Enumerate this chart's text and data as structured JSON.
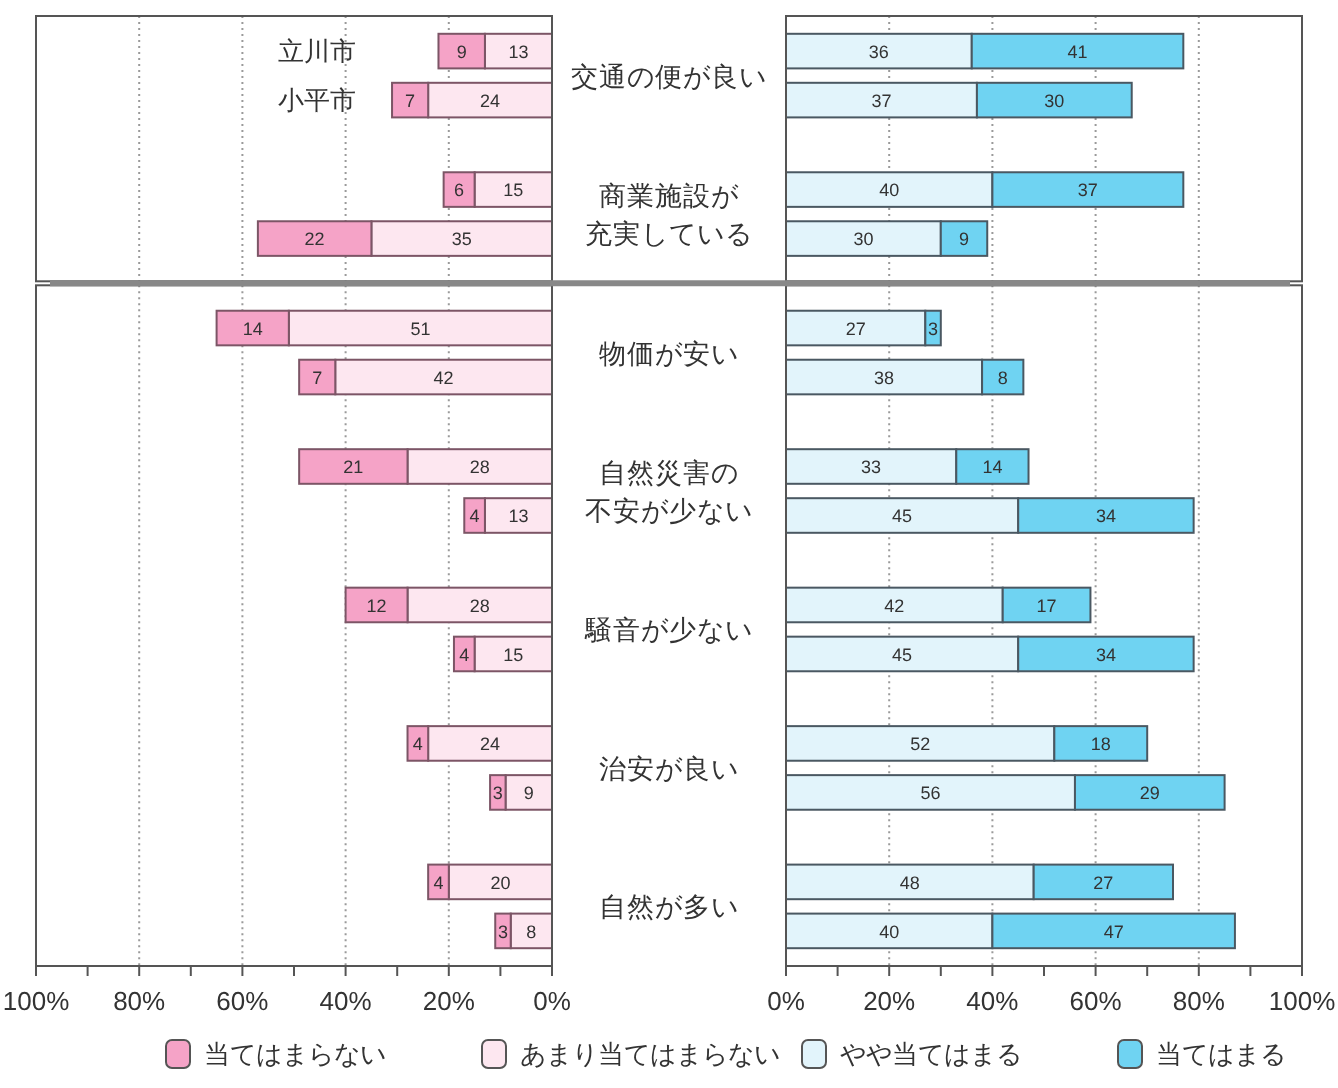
{
  "chart_data": [
    {
      "type": "bar",
      "orientation": "horizontal",
      "stacked": true,
      "categories": [
        "立川市",
        "小平市",
        null,
        null
      ],
      "series": [
        {
          "color": "#fde7f0",
          "values": [
            13,
            24,
            15,
            35
          ]
        },
        {
          "color": "#f5a3c7",
          "values": [
            9,
            7,
            6,
            22
          ]
        }
      ],
      "xlim": [
        100,
        0
      ],
      "xticks": [
        {
          "value": 80,
          "label": null
        },
        {
          "value": 60,
          "label": null
        },
        {
          "value": 40,
          "label": null
        },
        {
          "value": 20,
          "label": null
        }
      ],
      "grid": "x",
      "data_labels": true,
      "tick_labels": "y"
    },
    {
      "type": "other",
      "annotations": [
        "交通の便が良い",
        "商業施設が充実している"
      ]
    },
    {
      "type": "bar",
      "orientation": "horizontal",
      "stacked": true,
      "categories": [
        null,
        null,
        null,
        null
      ],
      "series": [
        {
          "color": "#e2f4fb",
          "values": [
            36,
            37,
            40,
            30
          ]
        },
        {
          "color": "#6fd3f2",
          "values": [
            41,
            30,
            37,
            9
          ]
        }
      ],
      "xlim": [
        0,
        100
      ],
      "xticks": [
        {
          "value": 20,
          "label": null
        },
        {
          "value": 40,
          "label": null
        },
        {
          "value": 60,
          "label": null
        },
        {
          "value": 80,
          "label": null
        }
      ],
      "grid": "x",
      "data_labels": true,
      "tick_labels": false
    },
    {
      "type": "bar",
      "orientation": "horizontal",
      "stacked": true,
      "categories": [
        null,
        null,
        null,
        null,
        null,
        null,
        null,
        null,
        null,
        null
      ],
      "series": [
        {
          "name": "あまり当てはまらない",
          "color": "#fde7f0",
          "values": [
            51,
            42,
            28,
            13,
            28,
            15,
            24,
            9,
            20,
            8
          ]
        },
        {
          "name": "当てはまらない",
          "color": "#f5a3c7",
          "values": [
            14,
            7,
            21,
            4,
            12,
            4,
            4,
            3,
            4,
            3
          ]
        }
      ],
      "xlim": [
        100,
        0
      ],
      "xticks": [
        {
          "value": 100,
          "label": "100%"
        },
        {
          "value": 90,
          "label": null
        },
        {
          "value": 80,
          "label": "80%"
        },
        {
          "value": 70,
          "label": null
        },
        {
          "value": 60,
          "label": "60%"
        },
        {
          "value": 50,
          "label": null
        },
        {
          "value": 40,
          "label": "40%"
        },
        {
          "value": 30,
          "label": null
        },
        {
          "value": 20,
          "label": "20%"
        },
        {
          "value": 10,
          "label": null
        },
        {
          "value": 0,
          "label": "0%"
        }
      ],
      "grid": "x",
      "legend": "bottom",
      "data_labels": true
    },
    {
      "type": "other",
      "annotations": [
        "物価が安い",
        "自然災害の不安が少ない",
        "騒音が少ない",
        "治安が良い",
        "自然が多い"
      ]
    },
    {
      "type": "bar",
      "orientation": "horizontal",
      "stacked": true,
      "categories": [
        null,
        null,
        null,
        null,
        null,
        null,
        null,
        null,
        null,
        null
      ],
      "series": [
        {
          "name": "やや当てはまる",
          "color": "#e2f4fb",
          "values": [
            27,
            38,
            33,
            45,
            42,
            45,
            52,
            56,
            48,
            40
          ]
        },
        {
          "name": "当てはまる",
          "color": "#6fd3f2",
          "values": [
            3,
            8,
            14,
            34,
            17,
            34,
            18,
            29,
            27,
            47
          ]
        }
      ],
      "xlim": [
        0,
        100
      ],
      "xticks": [
        {
          "value": 0,
          "label": "0%"
        },
        {
          "value": 10,
          "label": null
        },
        {
          "value": 20,
          "label": "20%"
        },
        {
          "value": 30,
          "label": null
        },
        {
          "value": 40,
          "label": "40%"
        },
        {
          "value": 50,
          "label": null
        },
        {
          "value": 60,
          "label": "60%"
        },
        {
          "value": 70,
          "label": null
        },
        {
          "value": 80,
          "label": "80%"
        },
        {
          "value": 90,
          "label": null
        },
        {
          "value": 100,
          "label": "100%"
        }
      ],
      "grid": "x",
      "legend": "bottom",
      "data_labels": true
    }
  ]
}
